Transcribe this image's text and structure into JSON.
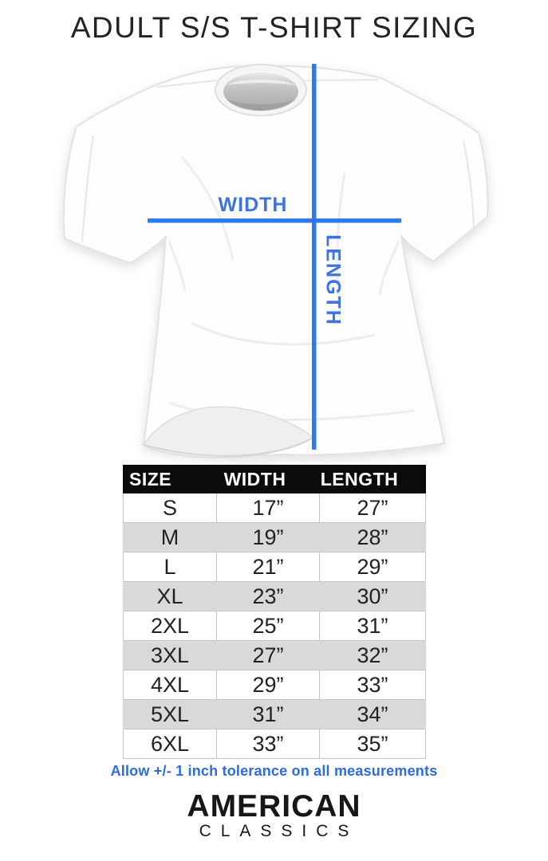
{
  "title": "ADULT S/S T-SHIRT SIZING",
  "diagram": {
    "width_label": "WIDTH",
    "length_label": "LENGTH",
    "line_color": "#2d7af0",
    "label_color": "#3d73e2",
    "shirt_fill": "#fdfdfd",
    "shirt_outline": "#e2e2e2"
  },
  "size_table": {
    "columns": [
      "SIZE",
      "WIDTH",
      "LENGTH"
    ],
    "rows": [
      [
        "S",
        "17”",
        "27”"
      ],
      [
        "M",
        "19”",
        "28”"
      ],
      [
        "L",
        "21”",
        "29”"
      ],
      [
        "XL",
        "23”",
        "30”"
      ],
      [
        "2XL",
        "25”",
        "31”"
      ],
      [
        "3XL",
        "27”",
        "32”"
      ],
      [
        "4XL",
        "29”",
        "33”"
      ],
      [
        "5XL",
        "31”",
        "34”"
      ],
      [
        "6XL",
        "33”",
        "35”"
      ]
    ],
    "header_bg": "#0b0b0b",
    "header_text_color": "#ffffff",
    "alt_row_bg": "#d9d9d9",
    "border_color": "#c6c6c6"
  },
  "tolerance_note": {
    "text": "Allow +/- 1 inch tolerance on all measurements",
    "color": "#2d6bdf"
  },
  "brand": {
    "line1": "AMERICAN",
    "line2": "CLASSICS"
  }
}
